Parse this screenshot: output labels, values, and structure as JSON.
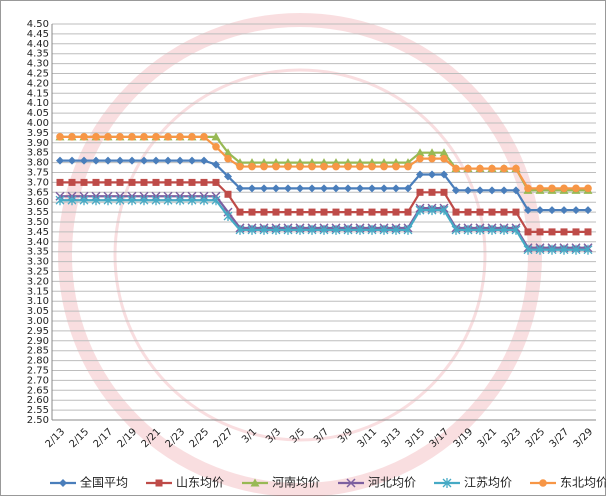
{
  "chart_data": {
    "type": "line",
    "categories": [
      "2/13",
      null,
      "2/15",
      null,
      "2/17",
      null,
      "2/19",
      null,
      "2/21",
      null,
      "2/23",
      null,
      "2/25",
      null,
      "2/27",
      null,
      "3/1",
      null,
      "3/3",
      null,
      "3/5",
      null,
      "3/7",
      null,
      "3/9",
      null,
      "3/11",
      null,
      "3/13",
      null,
      "3/15",
      null,
      "3/17",
      null,
      "3/19",
      null,
      "3/21",
      null,
      "3/23",
      null,
      "3/25",
      null,
      "3/27",
      null,
      "3/29"
    ],
    "series": [
      {
        "name": "全国平均",
        "color": "#4a7ebb",
        "marker": "diamond",
        "values": [
          3.81,
          3.81,
          3.81,
          3.81,
          3.81,
          3.81,
          3.81,
          3.81,
          3.81,
          3.81,
          3.81,
          3.81,
          3.81,
          3.79,
          3.73,
          3.67,
          3.67,
          3.67,
          3.67,
          3.67,
          3.67,
          3.67,
          3.67,
          3.67,
          3.67,
          3.67,
          3.67,
          3.67,
          3.67,
          3.67,
          3.74,
          3.74,
          3.74,
          3.66,
          3.66,
          3.66,
          3.66,
          3.66,
          3.66,
          3.56,
          3.56,
          3.56,
          3.56,
          3.56,
          3.56
        ]
      },
      {
        "name": "山东均价",
        "color": "#be4b48",
        "marker": "square",
        "values": [
          3.7,
          3.7,
          3.7,
          3.7,
          3.7,
          3.7,
          3.7,
          3.7,
          3.7,
          3.7,
          3.7,
          3.7,
          3.7,
          3.7,
          3.64,
          3.55,
          3.55,
          3.55,
          3.55,
          3.55,
          3.55,
          3.55,
          3.55,
          3.55,
          3.55,
          3.55,
          3.55,
          3.55,
          3.55,
          3.55,
          3.65,
          3.65,
          3.65,
          3.55,
          3.55,
          3.55,
          3.55,
          3.55,
          3.55,
          3.45,
          3.45,
          3.45,
          3.45,
          3.45,
          3.45
        ]
      },
      {
        "name": "河南均价",
        "color": "#98b954",
        "marker": "triangle",
        "values": [
          3.93,
          3.93,
          3.93,
          3.93,
          3.93,
          3.93,
          3.93,
          3.93,
          3.93,
          3.93,
          3.93,
          3.93,
          3.93,
          3.93,
          3.85,
          3.8,
          3.8,
          3.8,
          3.8,
          3.8,
          3.8,
          3.8,
          3.8,
          3.8,
          3.8,
          3.8,
          3.8,
          3.8,
          3.8,
          3.8,
          3.85,
          3.85,
          3.85,
          3.77,
          3.77,
          3.77,
          3.77,
          3.77,
          3.77,
          3.66,
          3.66,
          3.66,
          3.66,
          3.66,
          3.66
        ]
      },
      {
        "name": "河北均价",
        "color": "#7d60a0",
        "marker": "x",
        "values": [
          3.63,
          3.63,
          3.63,
          3.63,
          3.63,
          3.63,
          3.63,
          3.63,
          3.63,
          3.63,
          3.63,
          3.63,
          3.63,
          3.63,
          3.55,
          3.47,
          3.47,
          3.47,
          3.47,
          3.47,
          3.47,
          3.47,
          3.47,
          3.47,
          3.47,
          3.47,
          3.47,
          3.47,
          3.47,
          3.47,
          3.57,
          3.57,
          3.57,
          3.47,
          3.47,
          3.47,
          3.47,
          3.47,
          3.47,
          3.37,
          3.37,
          3.37,
          3.37,
          3.37,
          3.37
        ]
      },
      {
        "name": "江苏均价",
        "color": "#46aac5",
        "marker": "star",
        "values": [
          3.61,
          3.61,
          3.61,
          3.61,
          3.61,
          3.61,
          3.61,
          3.61,
          3.61,
          3.61,
          3.61,
          3.61,
          3.61,
          3.61,
          3.53,
          3.46,
          3.46,
          3.46,
          3.46,
          3.46,
          3.46,
          3.46,
          3.46,
          3.46,
          3.46,
          3.46,
          3.46,
          3.46,
          3.46,
          3.46,
          3.56,
          3.56,
          3.56,
          3.46,
          3.46,
          3.46,
          3.46,
          3.46,
          3.46,
          3.36,
          3.36,
          3.36,
          3.36,
          3.36,
          3.36
        ]
      },
      {
        "name": "东北均价",
        "color": "#f79646",
        "marker": "circle",
        "values": [
          3.93,
          3.93,
          3.93,
          3.93,
          3.93,
          3.93,
          3.93,
          3.93,
          3.93,
          3.93,
          3.93,
          3.93,
          3.93,
          3.88,
          3.82,
          3.78,
          3.78,
          3.78,
          3.78,
          3.78,
          3.78,
          3.78,
          3.78,
          3.78,
          3.78,
          3.78,
          3.78,
          3.78,
          3.78,
          3.78,
          3.82,
          3.82,
          3.82,
          3.77,
          3.77,
          3.77,
          3.77,
          3.77,
          3.77,
          3.67,
          3.67,
          3.67,
          3.67,
          3.67,
          3.67
        ]
      }
    ],
    "ylim": [
      2.5,
      4.5
    ],
    "yticks": [
      {
        "value": 2.5,
        "label": "2.50"
      },
      2.55,
      {
        "value": 2.6,
        "label": "2.60"
      },
      2.65,
      {
        "value": 2.7,
        "label": "2.70"
      },
      2.75,
      {
        "value": 2.8,
        "label": "2.80"
      },
      2.85,
      {
        "value": 2.9,
        "label": "2.90"
      },
      2.95,
      {
        "value": 3,
        "label": "3.00"
      },
      3.05,
      {
        "value": 3.1,
        "label": "3.10"
      },
      3.15,
      {
        "value": 3.2,
        "label": "3.20"
      },
      3.25,
      {
        "value": 3.3,
        "label": "3.30"
      },
      3.35,
      {
        "value": 3.4,
        "label": "3.40"
      },
      3.45,
      {
        "value": 3.5,
        "label": "3.50"
      },
      3.55,
      {
        "value": 3.6,
        "label": "3.60"
      },
      3.65,
      {
        "value": 3.7,
        "label": "3.70"
      },
      3.75,
      {
        "value": 3.8,
        "label": "3.80"
      },
      3.85,
      {
        "value": 3.9,
        "label": "3.90"
      },
      3.95,
      {
        "value": 4,
        "label": "4.00"
      },
      4.05,
      {
        "value": 4.1,
        "label": "4.10"
      },
      4.15,
      {
        "value": 4.2,
        "label": "4.20"
      },
      4.25,
      {
        "value": 4.3,
        "label": "4.30"
      },
      4.35,
      {
        "value": 4.4,
        "label": "4.40"
      },
      4.45,
      {
        "value": 4.5,
        "label": "4.50"
      }
    ],
    "grid": true,
    "legend": "bottom"
  }
}
